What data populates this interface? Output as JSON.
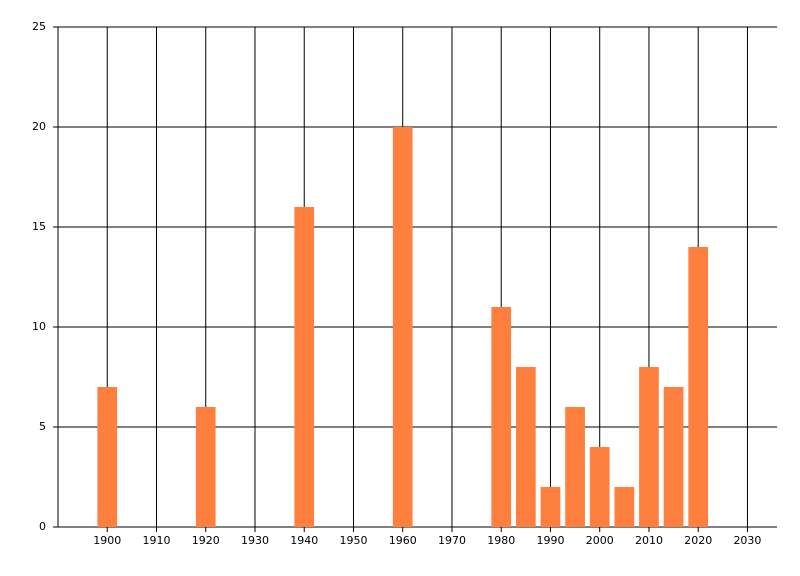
{
  "chart_data": {
    "type": "bar",
    "x": [
      1900,
      1920,
      1940,
      1960,
      1980,
      1985,
      1990,
      1995,
      2000,
      2005,
      2010,
      2015,
      2020
    ],
    "values": [
      7,
      6,
      16,
      20,
      11,
      8,
      2,
      6,
      4,
      2,
      8,
      7,
      14
    ],
    "color": "#ff7f3f",
    "xlim": [
      1890,
      2036
    ],
    "xticks": [
      1900,
      1910,
      1920,
      1930,
      1940,
      1950,
      1960,
      1970,
      1980,
      1990,
      2000,
      2010,
      2020,
      2030
    ],
    "ylim": [
      0,
      25
    ],
    "yticks": [
      0,
      5,
      10,
      15,
      20,
      25
    ],
    "grid": true
  }
}
